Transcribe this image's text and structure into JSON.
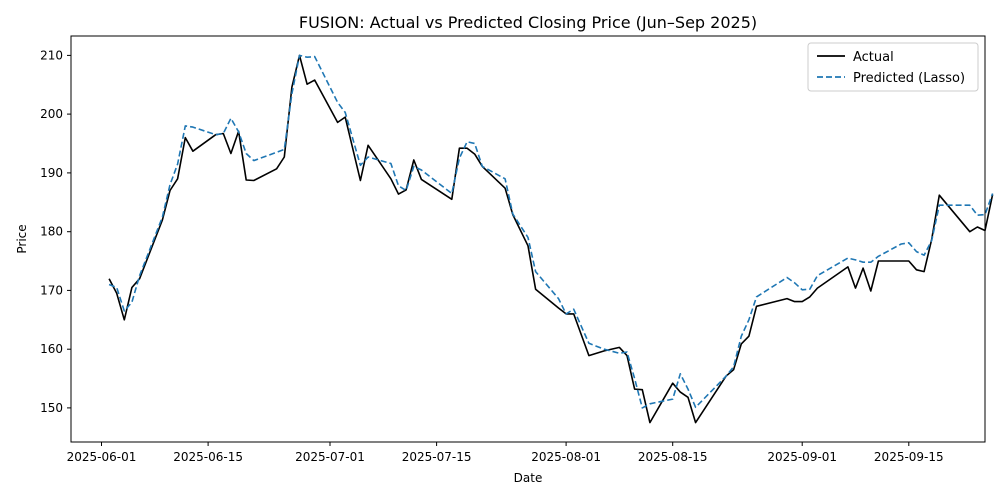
{
  "chart_data": {
    "type": "line",
    "title": "FUSION: Actual vs Predicted Closing Price (Jun–Sep 2025)",
    "xlabel": "Date",
    "ylabel": "Price",
    "xlim": [
      "2025-05-28",
      "2025-09-25"
    ],
    "ylim": [
      144.2,
      213.3
    ],
    "xticks": [
      "2025-06-01",
      "2025-06-15",
      "2025-07-01",
      "2025-07-15",
      "2025-08-01",
      "2025-08-15",
      "2025-09-01",
      "2025-09-15"
    ],
    "yticks": [
      150,
      160,
      170,
      180,
      190,
      200,
      210
    ],
    "grid": false,
    "legend_position": "top-right",
    "series": [
      {
        "name": "Actual",
        "color": "#000000",
        "style": "solid",
        "points": [
          [
            "2025-06-02",
            172.0
          ],
          [
            "2025-06-03",
            169.5
          ],
          [
            "2025-06-04",
            165.0
          ],
          [
            "2025-06-05",
            170.5
          ],
          [
            "2025-06-06",
            172.0
          ],
          [
            "2025-06-09",
            182.0
          ],
          [
            "2025-06-10",
            187.0
          ],
          [
            "2025-06-11",
            189.0
          ],
          [
            "2025-06-12",
            196.0
          ],
          [
            "2025-06-13",
            193.7
          ],
          [
            "2025-06-16",
            196.5
          ],
          [
            "2025-06-17",
            196.7
          ],
          [
            "2025-06-18",
            193.3
          ],
          [
            "2025-06-19",
            197.1
          ],
          [
            "2025-06-20",
            188.8
          ],
          [
            "2025-06-21",
            188.7
          ],
          [
            "2025-06-24",
            190.7
          ],
          [
            "2025-06-25",
            192.7
          ],
          [
            "2025-06-26",
            204.6
          ],
          [
            "2025-06-27",
            210.0
          ],
          [
            "2025-06-28",
            205.1
          ],
          [
            "2025-06-29",
            205.8
          ],
          [
            "2025-07-02",
            198.6
          ],
          [
            "2025-07-03",
            199.5
          ],
          [
            "2025-07-05",
            188.7
          ],
          [
            "2025-07-06",
            194.7
          ],
          [
            "2025-07-09",
            189.0
          ],
          [
            "2025-07-10",
            186.4
          ],
          [
            "2025-07-11",
            187.1
          ],
          [
            "2025-07-12",
            192.2
          ],
          [
            "2025-07-13",
            188.9
          ],
          [
            "2025-07-17",
            185.5
          ],
          [
            "2025-07-18",
            194.2
          ],
          [
            "2025-07-19",
            194.2
          ],
          [
            "2025-07-20",
            193.2
          ],
          [
            "2025-07-21",
            191.1
          ],
          [
            "2025-07-24",
            187.4
          ],
          [
            "2025-07-25",
            182.9
          ],
          [
            "2025-07-27",
            177.6
          ],
          [
            "2025-07-28",
            170.2
          ],
          [
            "2025-07-31",
            167.0
          ],
          [
            "2025-08-01",
            166.0
          ],
          [
            "2025-08-02",
            166.0
          ],
          [
            "2025-08-04",
            158.9
          ],
          [
            "2025-08-06",
            159.7
          ],
          [
            "2025-08-08",
            160.3
          ],
          [
            "2025-08-09",
            158.9
          ],
          [
            "2025-08-10",
            153.2
          ],
          [
            "2025-08-11",
            153.1
          ],
          [
            "2025-08-12",
            147.5
          ],
          [
            "2025-08-15",
            154.2
          ],
          [
            "2025-08-16",
            152.7
          ],
          [
            "2025-08-17",
            151.8
          ],
          [
            "2025-08-18",
            147.5
          ],
          [
            "2025-08-22",
            155.4
          ],
          [
            "2025-08-23",
            156.5
          ],
          [
            "2025-08-24",
            160.9
          ],
          [
            "2025-08-25",
            162.2
          ],
          [
            "2025-08-26",
            167.3
          ],
          [
            "2025-08-30",
            168.6
          ],
          [
            "2025-08-31",
            168.1
          ],
          [
            "2025-09-01",
            168.1
          ],
          [
            "2025-09-02",
            168.9
          ],
          [
            "2025-09-03",
            170.4
          ],
          [
            "2025-09-07",
            174.0
          ],
          [
            "2025-09-08",
            170.4
          ],
          [
            "2025-09-09",
            173.8
          ],
          [
            "2025-09-10",
            169.9
          ],
          [
            "2025-09-11",
            175.0
          ],
          [
            "2025-09-14",
            175.0
          ],
          [
            "2025-09-15",
            175.0
          ],
          [
            "2025-09-16",
            173.5
          ],
          [
            "2025-09-17",
            173.2
          ],
          [
            "2025-09-18",
            178.7
          ],
          [
            "2025-09-19",
            186.2
          ],
          [
            "2025-09-23",
            180.0
          ],
          [
            "2025-09-24",
            180.8
          ],
          [
            "2025-09-25",
            180.2
          ],
          [
            "2025-09-26",
            186.3
          ]
        ]
      },
      {
        "name": "Predicted (Lasso)",
        "color": "#1f77b4",
        "style": "dashed",
        "points": [
          [
            "2025-06-02",
            171.0
          ],
          [
            "2025-06-03",
            170.5
          ],
          [
            "2025-06-04",
            166.5
          ],
          [
            "2025-06-05",
            168.0
          ],
          [
            "2025-06-06",
            172.5
          ],
          [
            "2025-06-09",
            182.5
          ],
          [
            "2025-06-10",
            188.0
          ],
          [
            "2025-06-11",
            191.5
          ],
          [
            "2025-06-12",
            198.0
          ],
          [
            "2025-06-13",
            197.8
          ],
          [
            "2025-06-16",
            196.5
          ],
          [
            "2025-06-17",
            196.7
          ],
          [
            "2025-06-18",
            199.3
          ],
          [
            "2025-06-19",
            197.0
          ],
          [
            "2025-06-20",
            193.3
          ],
          [
            "2025-06-21",
            192.1
          ],
          [
            "2025-06-24",
            193.5
          ],
          [
            "2025-06-25",
            194.0
          ],
          [
            "2025-06-26",
            203.5
          ],
          [
            "2025-06-27",
            210.0
          ],
          [
            "2025-06-28",
            209.7
          ],
          [
            "2025-06-29",
            209.8
          ],
          [
            "2025-07-02",
            202.0
          ],
          [
            "2025-07-03",
            200.3
          ],
          [
            "2025-07-05",
            191.3
          ],
          [
            "2025-07-06",
            192.7
          ],
          [
            "2025-07-09",
            191.6
          ],
          [
            "2025-07-10",
            187.8
          ],
          [
            "2025-07-11",
            187.0
          ],
          [
            "2025-07-12",
            191.1
          ],
          [
            "2025-07-13",
            190.5
          ],
          [
            "2025-07-17",
            186.5
          ],
          [
            "2025-07-18",
            192.5
          ],
          [
            "2025-07-19",
            195.3
          ],
          [
            "2025-07-20",
            195.0
          ],
          [
            "2025-07-21",
            191.1
          ],
          [
            "2025-07-24",
            189.0
          ],
          [
            "2025-07-25",
            183.0
          ],
          [
            "2025-07-27",
            179.0
          ],
          [
            "2025-07-28",
            173.2
          ],
          [
            "2025-07-31",
            168.6
          ],
          [
            "2025-08-01",
            166.0
          ],
          [
            "2025-08-02",
            166.8
          ],
          [
            "2025-08-04",
            161.0
          ],
          [
            "2025-08-06",
            160.0
          ],
          [
            "2025-08-08",
            159.3
          ],
          [
            "2025-08-09",
            159.5
          ],
          [
            "2025-08-10",
            155.0
          ],
          [
            "2025-08-11",
            150.0
          ],
          [
            "2025-08-12",
            150.7
          ],
          [
            "2025-08-15",
            151.5
          ],
          [
            "2025-08-16",
            155.8
          ],
          [
            "2025-08-17",
            153.2
          ],
          [
            "2025-08-18",
            150.1
          ],
          [
            "2025-08-22",
            155.4
          ],
          [
            "2025-08-23",
            157.0
          ],
          [
            "2025-08-24",
            162.2
          ],
          [
            "2025-08-25",
            165.0
          ],
          [
            "2025-08-26",
            168.9
          ],
          [
            "2025-08-30",
            172.2
          ],
          [
            "2025-08-31",
            171.3
          ],
          [
            "2025-09-01",
            170.1
          ],
          [
            "2025-09-02",
            170.2
          ],
          [
            "2025-09-03",
            172.5
          ],
          [
            "2025-09-07",
            175.5
          ],
          [
            "2025-09-08",
            175.2
          ],
          [
            "2025-09-09",
            174.8
          ],
          [
            "2025-09-10",
            174.8
          ],
          [
            "2025-09-11",
            175.8
          ],
          [
            "2025-09-14",
            177.9
          ],
          [
            "2025-09-15",
            178.1
          ],
          [
            "2025-09-16",
            176.6
          ],
          [
            "2025-09-17",
            176.0
          ],
          [
            "2025-09-18",
            178.5
          ],
          [
            "2025-09-19",
            184.5
          ],
          [
            "2025-09-23",
            184.5
          ],
          [
            "2025-09-24",
            182.8
          ],
          [
            "2025-09-25",
            182.9
          ],
          [
            "2025-09-26",
            186.5
          ]
        ]
      }
    ]
  }
}
